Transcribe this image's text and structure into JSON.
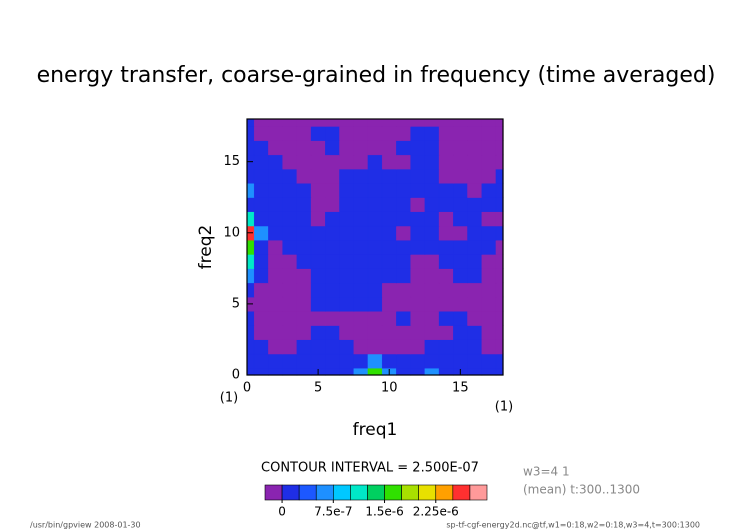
{
  "chart_data": {
    "type": "contour",
    "title": "energy transfer, coarse-grained in frequency (time averaged)",
    "xlabel": "freq1",
    "ylabel": "freq2",
    "x_unit": "(1)",
    "y_unit": "(1)",
    "xlim": [
      0,
      18
    ],
    "ylim": [
      0,
      18
    ],
    "xticks": [
      0,
      5,
      10,
      15
    ],
    "yticks": [
      0,
      5,
      10,
      15
    ],
    "z": [
      [
        1e-07,
        1e-07,
        1e-07,
        1e-07,
        1e-07,
        1e-07,
        1e-07,
        1e-07,
        5e-07,
        1.5e-06,
        5e-07,
        1e-07,
        1e-07,
        5e-07,
        1e-07,
        1e-07,
        1e-07,
        1e-07,
        1e-07
      ],
      [
        1e-07,
        1e-07,
        1e-07,
        1e-07,
        1e-07,
        1e-07,
        1e-07,
        1e-07,
        1e-07,
        5e-07,
        1e-07,
        1e-07,
        1e-07,
        1e-07,
        1e-07,
        1e-07,
        1e-07,
        1e-07,
        1e-07
      ],
      [
        1e-07,
        1e-07,
        -1e-07,
        -1e-07,
        1e-07,
        1e-07,
        1e-07,
        1e-07,
        -1e-07,
        -1e-07,
        -1e-07,
        -1e-07,
        -1e-07,
        1e-07,
        1e-07,
        1e-07,
        1e-07,
        -1e-07,
        -1e-07
      ],
      [
        1e-07,
        -1e-07,
        -1e-07,
        -1e-07,
        -1e-07,
        1e-07,
        1e-07,
        -1e-07,
        -1e-07,
        -1e-07,
        -1e-07,
        -1e-07,
        -1e-07,
        -1e-07,
        -1e-07,
        1e-07,
        1e-07,
        -1e-07,
        -1e-07
      ],
      [
        1e-07,
        -1e-07,
        -1e-07,
        -1e-07,
        -1e-07,
        -1e-07,
        -1e-07,
        -1e-07,
        -1e-07,
        -1e-07,
        -1e-07,
        1e-07,
        -1e-07,
        -1e-07,
        1e-07,
        1e-07,
        -1e-07,
        -1e-07,
        -1e-07
      ],
      [
        -1e-07,
        -1e-07,
        -1e-07,
        -1e-07,
        -1e-07,
        1e-07,
        1e-07,
        1e-07,
        1e-07,
        1e-07,
        -1e-07,
        -1e-07,
        -1e-07,
        -1e-07,
        -1e-07,
        -1e-07,
        -1e-07,
        -1e-07,
        -1e-07
      ],
      [
        1e-07,
        -1e-07,
        -1e-07,
        -1e-07,
        -1e-07,
        1e-07,
        1e-07,
        1e-07,
        1e-07,
        1e-07,
        -1e-07,
        -1e-07,
        -1e-07,
        -1e-07,
        -1e-07,
        -1e-07,
        -1e-07,
        -1e-07,
        -1e-07
      ],
      [
        5e-07,
        1e-07,
        -1e-07,
        -1e-07,
        -1e-07,
        1e-07,
        1e-07,
        1e-07,
        1e-07,
        1e-07,
        1e-07,
        1e-07,
        -1e-07,
        -1e-07,
        -1e-07,
        1e-07,
        1e-07,
        -1e-07,
        -1e-07
      ],
      [
        1e-06,
        1e-07,
        -1e-07,
        -1e-07,
        1e-07,
        1e-07,
        1e-07,
        1e-07,
        1e-07,
        1e-07,
        1e-07,
        1e-07,
        -1e-07,
        -1e-07,
        1e-07,
        1e-07,
        1e-07,
        -1e-07,
        -1e-07
      ],
      [
        1.5e-06,
        1e-07,
        -1e-07,
        1e-07,
        1e-07,
        1e-07,
        1e-07,
        1e-07,
        1e-07,
        1e-07,
        1e-07,
        1e-07,
        1e-07,
        1e-07,
        1e-07,
        1e-07,
        1e-07,
        1e-07,
        -1e-07
      ],
      [
        2.5e-06,
        5e-07,
        1e-07,
        1e-07,
        1e-07,
        1e-07,
        1e-07,
        1e-07,
        1e-07,
        1e-07,
        1e-07,
        -1e-07,
        1e-07,
        1e-07,
        -1e-07,
        -1e-07,
        1e-07,
        1e-07,
        1e-07
      ],
      [
        1e-06,
        1e-07,
        1e-07,
        1e-07,
        1e-07,
        -1e-07,
        1e-07,
        1e-07,
        1e-07,
        1e-07,
        1e-07,
        1e-07,
        1e-07,
        1e-07,
        -1e-07,
        1e-07,
        1e-07,
        -1e-07,
        -1e-07
      ],
      [
        1e-07,
        1e-07,
        1e-07,
        1e-07,
        1e-07,
        -1e-07,
        -1e-07,
        1e-07,
        1e-07,
        1e-07,
        1e-07,
        1e-07,
        -1e-07,
        1e-07,
        1e-07,
        1e-07,
        1e-07,
        1e-07,
        1e-07
      ],
      [
        5e-07,
        1e-07,
        1e-07,
        1e-07,
        1e-07,
        -1e-07,
        -1e-07,
        1e-07,
        1e-07,
        1e-07,
        1e-07,
        1e-07,
        1e-07,
        1e-07,
        1e-07,
        1e-07,
        -1e-07,
        1e-07,
        1e-07
      ],
      [
        1e-07,
        1e-07,
        1e-07,
        1e-07,
        -1e-07,
        -1e-07,
        -1e-07,
        1e-07,
        1e-07,
        1e-07,
        1e-07,
        1e-07,
        1e-07,
        1e-07,
        -1e-07,
        -1e-07,
        -1e-07,
        -1e-07,
        1e-07
      ],
      [
        1e-07,
        1e-07,
        1e-07,
        -1e-07,
        -1e-07,
        -1e-07,
        -1e-07,
        -1e-07,
        -1e-07,
        1e-07,
        -1e-07,
        -1e-07,
        1e-07,
        1e-07,
        -1e-07,
        -1e-07,
        -1e-07,
        -1e-07,
        -1e-07
      ],
      [
        1e-07,
        1e-07,
        -1e-07,
        -1e-07,
        -1e-07,
        -1e-07,
        1e-07,
        -1e-07,
        -1e-07,
        -1e-07,
        -1e-07,
        1e-07,
        1e-07,
        1e-07,
        -1e-07,
        -1e-07,
        -1e-07,
        -1e-07,
        -1e-07
      ],
      [
        1e-07,
        -1e-07,
        -1e-07,
        -1e-07,
        -1e-07,
        1e-07,
        1e-07,
        -1e-07,
        -1e-07,
        -1e-07,
        -1e-07,
        -1e-07,
        1e-07,
        1e-07,
        -1e-07,
        -1e-07,
        -1e-07,
        -1e-07,
        -1e-07
      ],
      [
        1e-07,
        -1e-07,
        -1e-07,
        -1e-07,
        -1e-07,
        -1e-07,
        -1e-07,
        -1e-07,
        -1e-07,
        -1e-07,
        -1e-07,
        -1e-07,
        -1e-07,
        -1e-07,
        -1e-07,
        -1e-07,
        -1e-07,
        -1e-07,
        -1e-07
      ]
    ],
    "colorbar": {
      "title": "CONTOUR INTERVAL = 2.500E-07",
      "levels": [
        -2.5e-07,
        0,
        2.5e-07,
        5e-07,
        7.5e-07,
        1e-06,
        1.25e-06,
        1.5e-06,
        1.75e-06,
        2e-06,
        2.25e-06,
        2.5e-06,
        2.75e-06,
        3e-06
      ],
      "colors": [
        "#8a24b0",
        "#1f2ee6",
        "#1c58ff",
        "#1e90ff",
        "#00c8ff",
        "#00e8c8",
        "#00d060",
        "#30e000",
        "#a8e000",
        "#e8e000",
        "#ffa000",
        "#ff3030",
        "#ff9a9a"
      ],
      "ticks": [
        0,
        {
          "value": 7.5e-07,
          "label": "7.5e-7"
        },
        {
          "value": 1.5e-06,
          "label": "1.5e-6"
        },
        {
          "value": 2.25e-06,
          "label": "2.25e-6"
        }
      ]
    },
    "info": [
      "w3=4 1",
      "(mean) t:300..1300"
    ],
    "footer_left": "/usr/bin/gpview  2008-01-30",
    "footer_right": "sp-tf-cgf-energy2d.nc@tf,w1=0:18,w2=0:18,w3=4,t=300:1300"
  }
}
